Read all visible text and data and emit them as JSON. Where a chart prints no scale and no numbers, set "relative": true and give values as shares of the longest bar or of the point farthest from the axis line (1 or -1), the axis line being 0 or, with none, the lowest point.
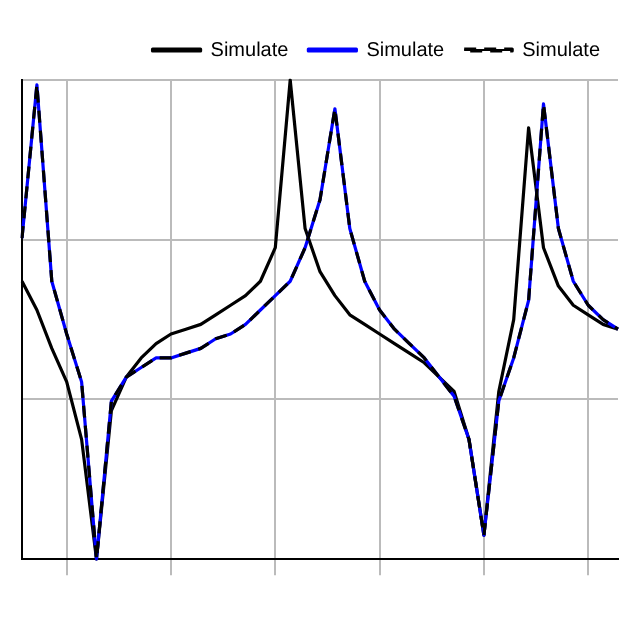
{
  "chart_data": {
    "type": "line",
    "relative": true,
    "grid": true,
    "legend": "top right",
    "marker": "none",
    "categories": [
      null,
      null,
      null,
      null,
      null,
      null,
      null,
      null,
      null,
      null,
      null,
      null,
      null,
      null,
      null,
      null,
      null,
      null,
      null,
      null,
      null,
      null,
      null,
      null,
      null,
      null,
      null,
      null,
      null,
      null,
      null,
      null,
      null,
      null,
      null,
      null,
      null,
      null,
      null,
      null,
      null
    ],
    "series": [
      {
        "name": "Simulate",
        "color": "#000000",
        "line_style": "solid",
        "values": [
          0.58,
          0.52,
          0.44,
          0.37,
          0.25,
          0,
          0.31,
          0.38,
          0.42,
          0.45,
          0.47,
          0.48,
          0.49,
          0.51,
          0.53,
          0.55,
          0.58,
          0.65,
          1,
          0.69,
          0.6,
          0.55,
          0.51,
          0.49,
          0.47,
          0.45,
          0.43,
          0.41,
          0.38,
          0.35,
          0.25,
          0.05,
          0.35,
          0.5,
          0.9,
          0.65,
          0.57,
          0.53,
          0.51,
          0.49,
          0.48
        ]
      },
      {
        "name": "Simulate",
        "color": "#0000ff",
        "line_style": "solid",
        "values": [
          0.67,
          0.99,
          0.58,
          0.47,
          0.37,
          0,
          0.33,
          0.38,
          0.4,
          0.42,
          0.42,
          0.43,
          0.44,
          0.46,
          0.47,
          0.49,
          0.52,
          0.55,
          0.58,
          0.65,
          0.75,
          0.94,
          0.69,
          0.58,
          0.52,
          0.48,
          0.45,
          0.42,
          0.38,
          0.34,
          0.25,
          0.05,
          0.33,
          0.42,
          0.54,
          0.95,
          0.69,
          0.58,
          0.53,
          0.5,
          0.48
        ]
      },
      {
        "name": "Simulate",
        "color": "#000000",
        "line_style": "dashed",
        "values": [
          0.67,
          0.99,
          0.58,
          0.47,
          0.37,
          0,
          0.33,
          0.38,
          0.4,
          0.42,
          0.42,
          0.43,
          0.44,
          0.46,
          0.47,
          0.49,
          0.52,
          0.55,
          0.58,
          0.65,
          0.75,
          0.94,
          0.69,
          0.58,
          0.52,
          0.48,
          0.45,
          0.42,
          0.38,
          0.34,
          0.25,
          0.05,
          0.33,
          0.42,
          0.54,
          0.95,
          0.69,
          0.58,
          0.53,
          0.5,
          0.48
        ]
      }
    ]
  }
}
